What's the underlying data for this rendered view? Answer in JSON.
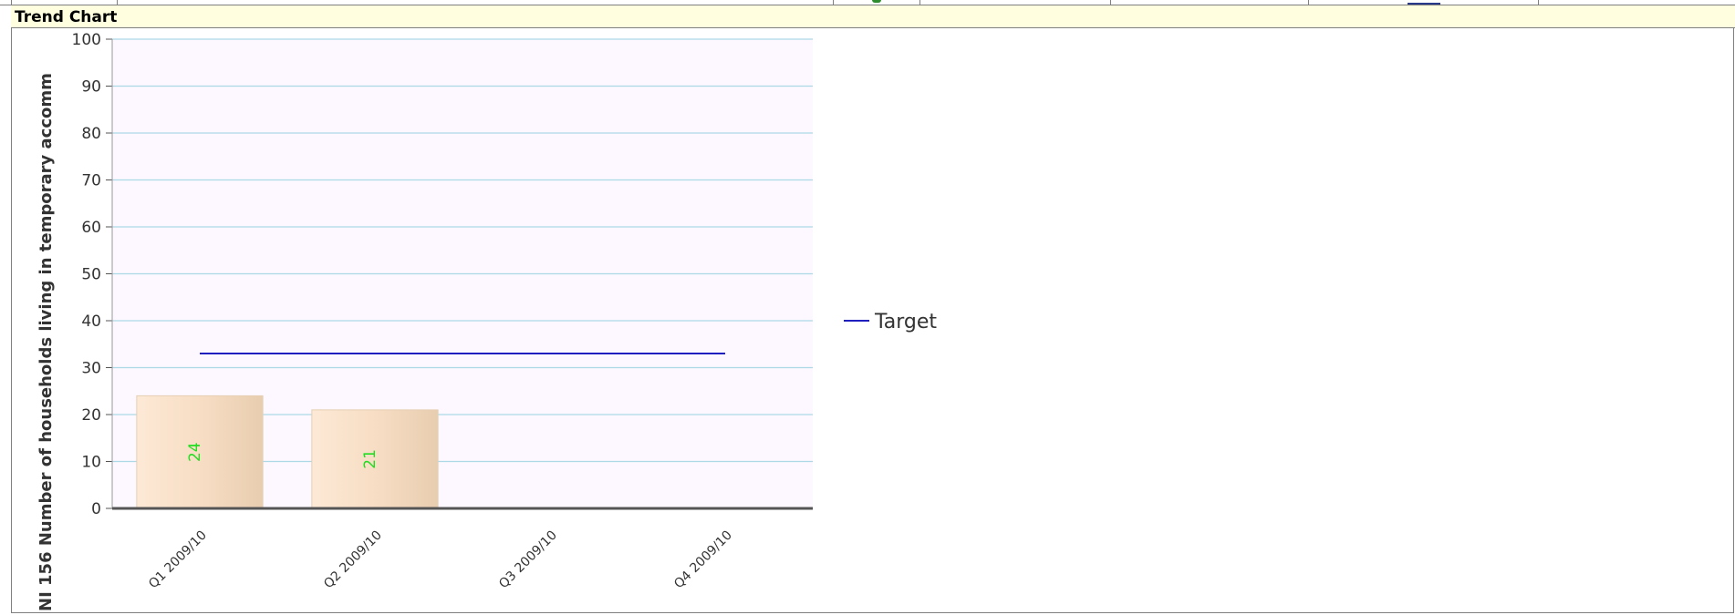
{
  "header": {
    "title": "Trend Chart"
  },
  "chart_data": {
    "type": "bar",
    "categories": [
      "Q1 2009/10",
      "Q2 2009/10",
      "Q3 2009/10",
      "Q4 2009/10"
    ],
    "series": [
      {
        "values": [
          24,
          21,
          null,
          null
        ],
        "data_labels": [
          "24",
          "21",
          "",
          ""
        ],
        "color": "#f5dcbf"
      },
      {
        "name": "Target",
        "type": "line",
        "values": [
          33,
          33,
          33,
          33
        ],
        "color": "#1f1fbf"
      }
    ],
    "yticks": [
      "0",
      "10",
      "20",
      "30",
      "40",
      "50",
      "60",
      "70",
      "80",
      "90",
      "100"
    ],
    "ylim": [
      0,
      100
    ],
    "ylabel": "NI 156 Number of households living in temporary accomm",
    "xlabel": "",
    "grid": true,
    "grid_color": "#add8e6",
    "plot_background": "#fdf8ff",
    "legend_position": "right",
    "data_label_color": "#22dd22"
  }
}
